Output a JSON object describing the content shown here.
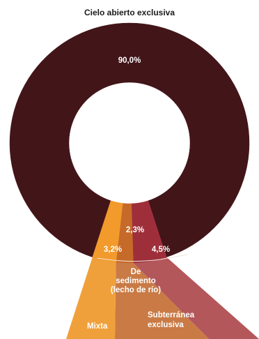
{
  "chart_data": {
    "type": "pie",
    "variant": "donut",
    "title": "",
    "categories": [
      "Cielo abierto exclusiva",
      "Subterránea exclusiva",
      "De sedimento (lecho de río)",
      "Mixta"
    ],
    "values": [
      90.0,
      4.5,
      2.3,
      3.2
    ],
    "value_labels": [
      "90,0%",
      "4,5%",
      "2,3%",
      "3,2%"
    ],
    "colors": [
      "#421519",
      "#9e2f3a",
      "#c66a2a",
      "#f29a2b"
    ],
    "callout_colors": [
      "#421519",
      "#b3575a",
      "#c97a45",
      "#f0a03a"
    ],
    "category_label_lines": [
      [
        "Cielo abierto exclusiva"
      ],
      [
        "Subterránea",
        "exclusiva"
      ],
      [
        "De",
        "sedimento",
        "(lecho de río)"
      ],
      [
        "Mixta"
      ]
    ]
  }
}
